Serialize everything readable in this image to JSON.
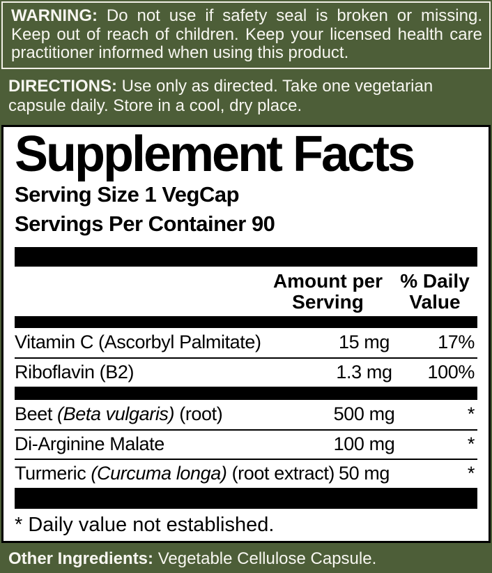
{
  "colors": {
    "background_green": "#4d5e38",
    "warning_border": "#f2f0e6",
    "panel_background": "#ffffff",
    "panel_border": "#000000",
    "bar_color": "#000000",
    "light_text": "#f7f6f0",
    "dark_text": "#000000"
  },
  "warning": {
    "label": "WARNING:",
    "text": " Do not use if safety seal is broken or missing. Keep out of reach of children. Keep your licensed health care practitioner informed when using this product."
  },
  "directions": {
    "label": "DIRECTIONS:",
    "text": " Use only as directed. Take one vegetarian capsule daily. Store in a cool, dry place."
  },
  "supplement_facts": {
    "title": "Supplement Facts",
    "serving_size": "Serving Size 1 VegCap",
    "servings_per_container": "Servings Per Container 90",
    "amount_header": "Amount per\nServing",
    "dv_header": "% Daily\nValue",
    "rows": [
      {
        "name_pre": "Vitamin C (Ascorbyl Palmitate)",
        "name_italic": "",
        "name_post": "",
        "amount": "15 mg",
        "dv": "17%"
      },
      {
        "name_pre": "Riboflavin (B2)",
        "name_italic": "",
        "name_post": "",
        "amount": "1.3 mg",
        "dv": "100%"
      },
      {
        "name_pre": "Beet ",
        "name_italic": "(Beta vulgaris)",
        "name_post": " (root)",
        "amount": "500 mg",
        "dv": "*"
      },
      {
        "name_pre": "Di-Arginine Malate",
        "name_italic": "",
        "name_post": "",
        "amount": "100 mg",
        "dv": "*"
      },
      {
        "name_pre": "Turmeric ",
        "name_italic": "(Curcuma longa)",
        "name_post": " (root extract)",
        "amount": "50 mg",
        "dv": "*"
      }
    ],
    "footnote": "* Daily value not established."
  },
  "other_ingredients": {
    "label": "Other Ingredients:",
    "text": " Vegetable Cellulose Capsule."
  }
}
